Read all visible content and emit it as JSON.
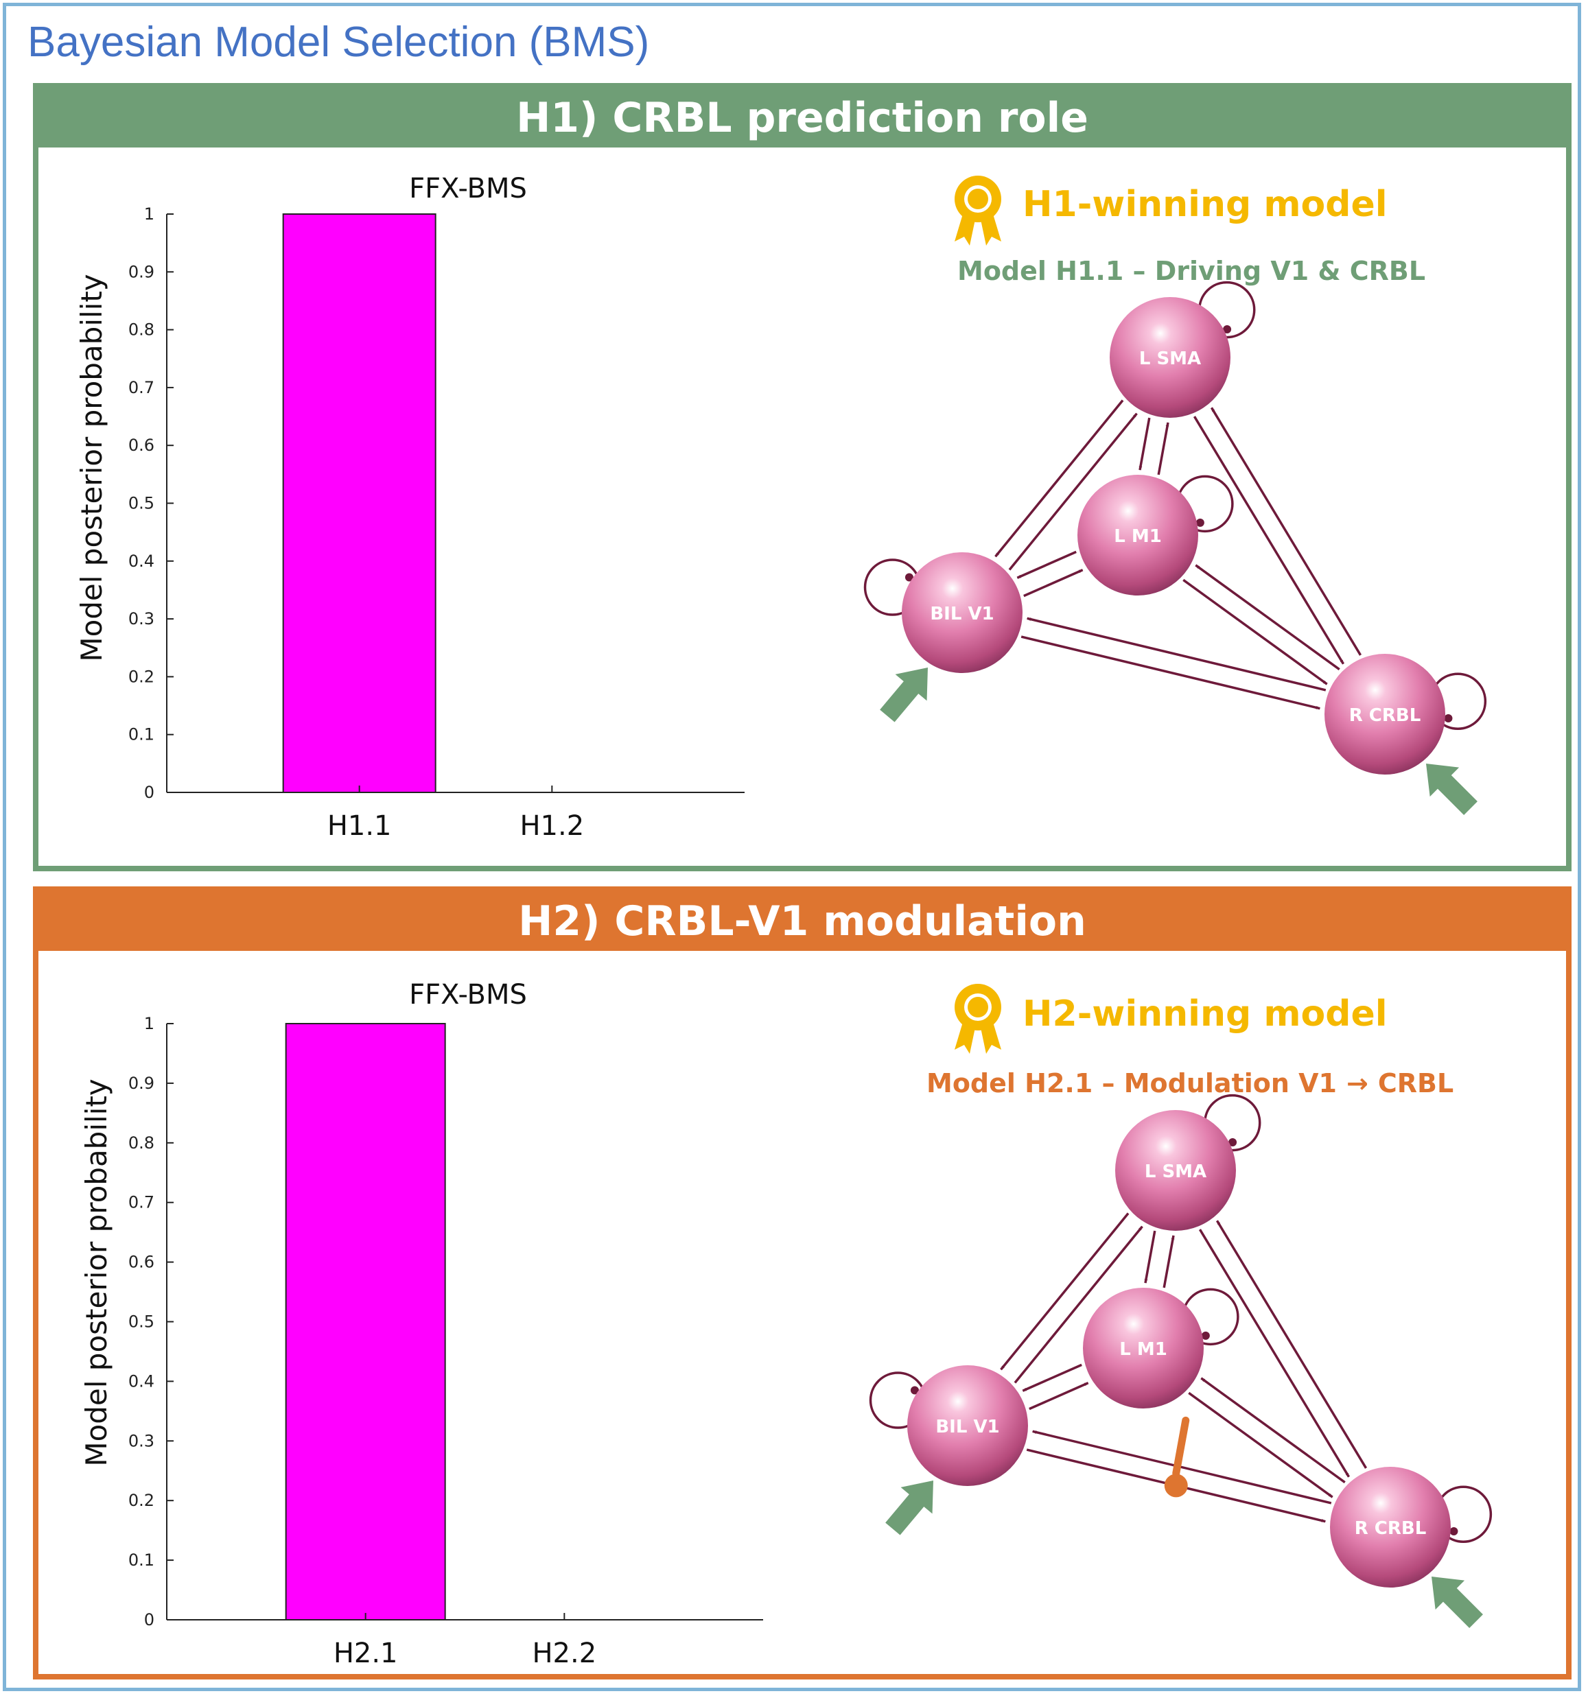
{
  "page_title": "Bayesian Model Selection (BMS)",
  "panels": [
    {
      "header": "H1) CRBL prediction role",
      "winner_title": "H1-winning model",
      "winner_subtitle": "Model H1.1 – Driving V1 & CRBL",
      "nodes": {
        "sma": "L SMA",
        "m1": "L M1",
        "v1": "BIL V1",
        "crbl": "R CRBL"
      }
    },
    {
      "header": "H2) CRBL-V1 modulation",
      "winner_title": "H2-winning model",
      "winner_subtitle_prefix": "Model H2.1 – Modulation  V1",
      "winner_subtitle_arrow": "→",
      "winner_subtitle_suffix": "CRBL",
      "nodes": {
        "sma": "L SMA",
        "m1": "L M1",
        "v1": "BIL V1",
        "crbl": "R CRBL"
      }
    }
  ],
  "colors": {
    "bar": "#ff00ff",
    "green": "#6f9e76",
    "orange": "#de7530",
    "gold": "#f5b800",
    "edge": "#6e1a3a",
    "title_blue": "#4472c4"
  },
  "icons": [
    "award-ribbon-icon",
    "input-arrow-icon"
  ],
  "chart_data": [
    {
      "type": "bar",
      "title": "FFX-BMS",
      "categories": [
        "H1.1",
        "H1.2"
      ],
      "values": [
        1,
        0
      ],
      "ylabel": "Model posterior probability",
      "xlabel": "",
      "ylim": [
        0,
        1
      ],
      "yticks": [
        "0",
        "0.1",
        "0.2",
        "0.3",
        "0.4",
        "0.5",
        "0.6",
        "0.7",
        "0.8",
        "0.9",
        "1"
      ],
      "grid": false
    },
    {
      "type": "bar",
      "title": "FFX-BMS",
      "categories": [
        "H2.1",
        "H2.2"
      ],
      "values": [
        1,
        0
      ],
      "ylabel": "Model posterior probability",
      "xlabel": "",
      "ylim": [
        0,
        1
      ],
      "yticks": [
        "0",
        "0.1",
        "0.2",
        "0.3",
        "0.4",
        "0.5",
        "0.6",
        "0.7",
        "0.8",
        "0.9",
        "1"
      ],
      "grid": false
    }
  ]
}
